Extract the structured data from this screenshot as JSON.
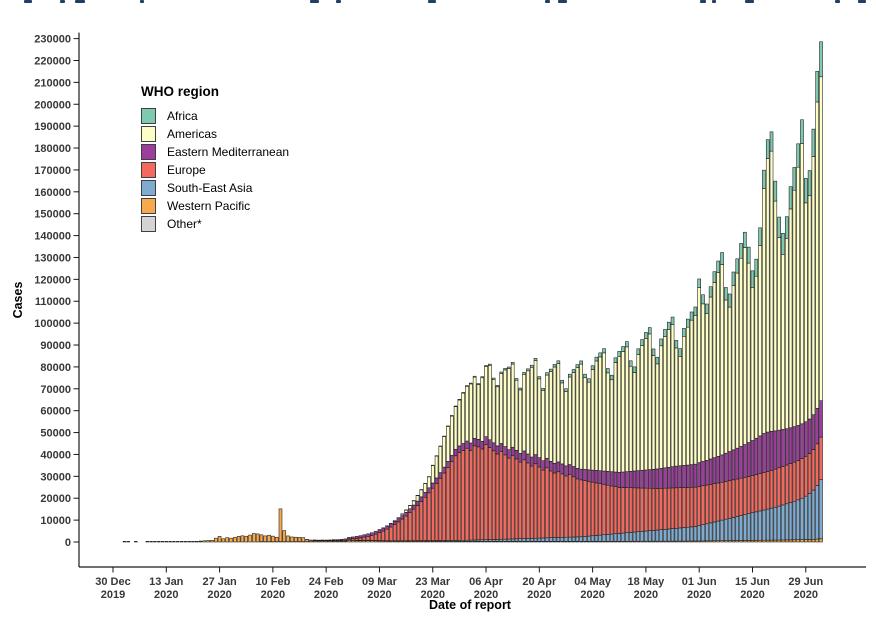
{
  "figure": {
    "y_axis_title": "Cases",
    "x_axis_title": "Date of report",
    "legend_title": "WHO region",
    "top_caption_cropped": true
  },
  "chart_data": {
    "type": "bar",
    "stacked": true,
    "title": "",
    "xlabel": "Date of report",
    "ylabel": "Cases",
    "ylim": [
      0,
      230000
    ],
    "y_tick_step": 10000,
    "grid": false,
    "legend_position": "top-left-inside",
    "bar_outline_color": "#141414",
    "start_date": "2019-12-30",
    "end_date": "2020-07-03",
    "n_days": 187,
    "x_ticks": [
      {
        "day_index": 0,
        "line1": "30 Dec",
        "line2": "2019"
      },
      {
        "day_index": 14,
        "line1": "13 Jan",
        "line2": "2020"
      },
      {
        "day_index": 28,
        "line1": "27 Jan",
        "line2": "2020"
      },
      {
        "day_index": 42,
        "line1": "10 Feb",
        "line2": "2020"
      },
      {
        "day_index": 56,
        "line1": "24 Feb",
        "line2": "2020"
      },
      {
        "day_index": 70,
        "line1": "09 Mar",
        "line2": "2020"
      },
      {
        "day_index": 84,
        "line1": "23 Mar",
        "line2": "2020"
      },
      {
        "day_index": 98,
        "line1": "06 Apr",
        "line2": "2020"
      },
      {
        "day_index": 112,
        "line1": "20 Apr",
        "line2": "2020"
      },
      {
        "day_index": 126,
        "line1": "04 May",
        "line2": "2020"
      },
      {
        "day_index": 140,
        "line1": "18 May",
        "line2": "2020"
      },
      {
        "day_index": 154,
        "line1": "01 Jun",
        "line2": "2020"
      },
      {
        "day_index": 168,
        "line1": "15 Jun",
        "line2": "2020"
      },
      {
        "day_index": 182,
        "line1": "29 Jun",
        "line2": "2020"
      }
    ],
    "stack_order_bottom_to_top": [
      "Other*",
      "Western Pacific",
      "South-East Asia",
      "Europe",
      "Eastern Mediterranean",
      "Americas",
      "Africa"
    ],
    "values_note": "daily case counts estimated from the plot; each series array starts after leading_zeros days of 0 and is zero-padded to n_days",
    "series": [
      {
        "name": "Africa",
        "color": "#7fc9b1",
        "leading_zeros": 76,
        "values": [
          10,
          15,
          20,
          30,
          40,
          55,
          70,
          90,
          110,
          130,
          150,
          170,
          200,
          230,
          260,
          290,
          320,
          350,
          385,
          420,
          455,
          490,
          525,
          560,
          595,
          630,
          665,
          700,
          735,
          770,
          805,
          840,
          875,
          910,
          945,
          980,
          1015,
          1050,
          1085,
          1120,
          1155,
          1190,
          1225,
          1260,
          1295,
          1330,
          1400,
          1450,
          1530,
          1610,
          1690,
          1770,
          1850,
          1930,
          2010,
          2090,
          2170,
          2250,
          2330,
          2410,
          2490,
          2570,
          2650,
          2730,
          2810,
          2890,
          2970,
          3050,
          3130,
          3210,
          3290,
          3370,
          3450,
          3530,
          3610,
          3690,
          3740,
          3800,
          3900,
          4160,
          4420,
          4680,
          4940,
          5200,
          5460,
          5720,
          5980,
          6240,
          6500,
          6760,
          7020,
          7280,
          7540,
          7800,
          8060,
          8320,
          8580,
          8840,
          9100,
          9360,
          9620,
          9880,
          10140,
          10400,
          10660,
          10920,
          11180,
          11500,
          12500,
          14000,
          16000
        ]
      },
      {
        "name": "Americas",
        "color": "#fdfdc6",
        "leading_zeros": 70,
        "values": [
          50,
          80,
          130,
          200,
          300,
          450,
          700,
          1000,
          1400,
          1900,
          2500,
          3200,
          4000,
          5000,
          8000,
          10000,
          12000,
          14000,
          16000,
          18000,
          19500,
          21000,
          23000,
          25000,
          27000,
          28000,
          25000,
          29000,
          32000,
          34000,
          29000,
          27000,
          32000,
          35000,
          37000,
          38000,
          32000,
          29000,
          35000,
          38000,
          41000,
          43000,
          36000,
          32000,
          38000,
          41000,
          44000,
          45000,
          37000,
          34000,
          40000,
          43000,
          46000,
          48000,
          42000,
          40000,
          46000,
          50000,
          52000,
          54000,
          45000,
          42000,
          50000,
          53000,
          55000,
          57000,
          48000,
          45000,
          53000,
          57000,
          60000,
          62000,
          52000,
          48000,
          56000,
          60000,
          63000,
          65000,
          54000,
          50000,
          59000,
          63000,
          66000,
          68000,
          80000,
          72000,
          67000,
          74000,
          80000,
          84000,
          87000,
          70000,
          66000,
          75000,
          80000,
          86000,
          90000,
          82000,
          70000,
          74000,
          87000,
          112000,
          125000,
          128000,
          105000,
          88000,
          80000,
          87000,
          100000,
          108000,
          118000,
          128000,
          100000,
          102000,
          118000,
          140000,
          148000
        ]
      },
      {
        "name": "Eastern Mediterranean",
        "color": "#9c3f9c",
        "leading_zeros": 51,
        "values": [
          5,
          20,
          30,
          60,
          100,
          150,
          250,
          350,
          400,
          500,
          600,
          700,
          800,
          900,
          1000,
          1100,
          1150,
          1200,
          1250,
          1300,
          1350,
          1400,
          1450,
          1500,
          1550,
          1600,
          1700,
          1800,
          1900,
          2000,
          2100,
          2200,
          2300,
          2400,
          2500,
          2600,
          2700,
          2800,
          2900,
          3000,
          3100,
          3200,
          3300,
          3350,
          3400,
          3450,
          3500,
          3550,
          3600,
          3650,
          3700,
          3750,
          3800,
          3850,
          3900,
          3950,
          4000,
          4050,
          4100,
          4150,
          4200,
          4250,
          4300,
          4350,
          4400,
          4450,
          4500,
          4550,
          4600,
          4650,
          4700,
          4800,
          4900,
          5100,
          5300,
          5500,
          5700,
          5900,
          6100,
          6300,
          6500,
          6700,
          6900,
          7100,
          7300,
          7500,
          7700,
          7900,
          8100,
          8300,
          8500,
          8700,
          8900,
          9100,
          9300,
          9500,
          9700,
          9900,
          10000,
          10100,
          10200,
          10350,
          10500,
          10900,
          11100,
          11300,
          11600,
          11900,
          12200,
          12500,
          12900,
          13300,
          13700,
          14100,
          14500,
          15000,
          15500,
          16000,
          16600,
          17200,
          17800,
          18000,
          17800,
          17500,
          17200,
          16900,
          16600,
          16400,
          16200,
          16000,
          15900,
          15800,
          15800,
          15900,
          16200,
          16600
        ]
      },
      {
        "name": "Europe",
        "color": "#f4695e",
        "leading_zeros": 53,
        "values": [
          10,
          30,
          50,
          80,
          120,
          180,
          230,
          300,
          380,
          500,
          650,
          850,
          1100,
          1400,
          1800,
          2300,
          2900,
          3600,
          4400,
          5300,
          6300,
          7400,
          8600,
          9900,
          11300,
          12800,
          14400,
          16100,
          17900,
          19800,
          21800,
          23900,
          26100,
          28400,
          30800,
          33300,
          35900,
          38600,
          40000,
          41000,
          42000,
          41000,
          43000,
          42500,
          41500,
          43500,
          42000,
          40500,
          39000,
          40000,
          38500,
          37000,
          38000,
          36500,
          35000,
          36000,
          34500,
          33000,
          34000,
          32500,
          31000,
          32000,
          30500,
          29500,
          30000,
          29000,
          28000,
          28500,
          27500,
          26500,
          26000,
          25500,
          25000,
          24500,
          24000,
          23500,
          23000,
          22500,
          22000,
          21500,
          21000,
          20800,
          20600,
          20400,
          20200,
          20000,
          19800,
          19600,
          19400,
          19200,
          19000,
          18900,
          18800,
          18700,
          18600,
          18500,
          18400,
          18300,
          18200,
          18100,
          18000,
          17900,
          17800,
          17700,
          17600,
          17500,
          17400,
          17300,
          17250,
          17200,
          17150,
          17100,
          17050,
          17000,
          17000,
          17000,
          17050,
          17100,
          17150,
          17200,
          17300,
          17400,
          17500,
          17600,
          17700,
          17800,
          17900,
          18000,
          18100,
          18200,
          18300,
          18500,
          19000,
          19500
        ]
      },
      {
        "name": "South-East Asia",
        "color": "#7fabd1",
        "leading_zeros": 62,
        "values": [
          10,
          15,
          20,
          25,
          30,
          40,
          50,
          60,
          70,
          80,
          95,
          110,
          125,
          140,
          155,
          170,
          190,
          210,
          230,
          250,
          270,
          290,
          310,
          330,
          350,
          370,
          390,
          410,
          430,
          450,
          470,
          500,
          550,
          600,
          650,
          700,
          750,
          800,
          850,
          900,
          950,
          1000,
          1050,
          1100,
          1150,
          1200,
          1260,
          1320,
          1380,
          1440,
          1500,
          1560,
          1620,
          1680,
          1740,
          1800,
          1850,
          1900,
          1950,
          2000,
          2050,
          2100,
          2250,
          2400,
          2550,
          2700,
          2850,
          3000,
          3150,
          3300,
          3450,
          3600,
          3750,
          3900,
          4050,
          4200,
          4350,
          4500,
          4650,
          4800,
          4950,
          5100,
          5250,
          5400,
          5550,
          5700,
          5850,
          6000,
          6150,
          6300,
          6450,
          6600,
          7000,
          7400,
          7800,
          8200,
          8600,
          9000,
          9400,
          9800,
          10200,
          10600,
          11000,
          11400,
          11800,
          12200,
          12600,
          13000,
          13400,
          13800,
          14200,
          14600,
          15000,
          15500,
          16000,
          16500,
          17000,
          17600,
          18200,
          18900,
          19800,
          20900,
          22500,
          24500,
          27000
        ]
      },
      {
        "name": "Western Pacific",
        "color": "#f6a94d",
        "leading_zeros": 0,
        "values": [
          0,
          0,
          0,
          20,
          17,
          0,
          59,
          0,
          0,
          40,
          60,
          100,
          90,
          130,
          150,
          80,
          60,
          80,
          100,
          140,
          180,
          250,
          310,
          440,
          560,
          680,
          780,
          1750,
          2600,
          1470,
          1990,
          1750,
          2100,
          2590,
          2830,
          2650,
          3160,
          3890,
          3690,
          3150,
          2660,
          2980,
          2550,
          2050,
          15000,
          5100,
          2640,
          2170,
          2070,
          1998,
          1860,
          900,
          650,
          560,
          480,
          540,
          480,
          440,
          420,
          450,
          430,
          432,
          780,
          740,
          700,
          660,
          690,
          650,
          600,
          560,
          520,
          480,
          450,
          440,
          430,
          420,
          410,
          400,
          395,
          390,
          385,
          380,
          375,
          370,
          365,
          360,
          358,
          355,
          352,
          350,
          346,
          342,
          340,
          335,
          333,
          330,
          328,
          325,
          322,
          320,
          318,
          315,
          312,
          310,
          308,
          305,
          302,
          300,
          298,
          296,
          294,
          292,
          290,
          289,
          288,
          287,
          286,
          285,
          284,
          283,
          282,
          281,
          280,
          285,
          290,
          295,
          300,
          305,
          310,
          315,
          320,
          325,
          330,
          335,
          340,
          345,
          350,
          355,
          360,
          365,
          370,
          375,
          380,
          385,
          390,
          395,
          400,
          410,
          420,
          430,
          440,
          450,
          460,
          470,
          480,
          500,
          520,
          540,
          560,
          580,
          600,
          620,
          640,
          660,
          680,
          700,
          720,
          740,
          760,
          780,
          800,
          820,
          840,
          860,
          880,
          900,
          930,
          960,
          990,
          1020,
          1060,
          1100,
          1150,
          1200,
          1250,
          1350,
          1450
        ]
      },
      {
        "name": "Other*",
        "color": "#d4d4d4",
        "leading_zeros": 39,
        "values": [
          40,
          20,
          5,
          65,
          40,
          5,
          70,
          15,
          45,
          70,
          100,
          30,
          30,
          90,
          30,
          10,
          80,
          60,
          10,
          15
        ]
      }
    ]
  }
}
